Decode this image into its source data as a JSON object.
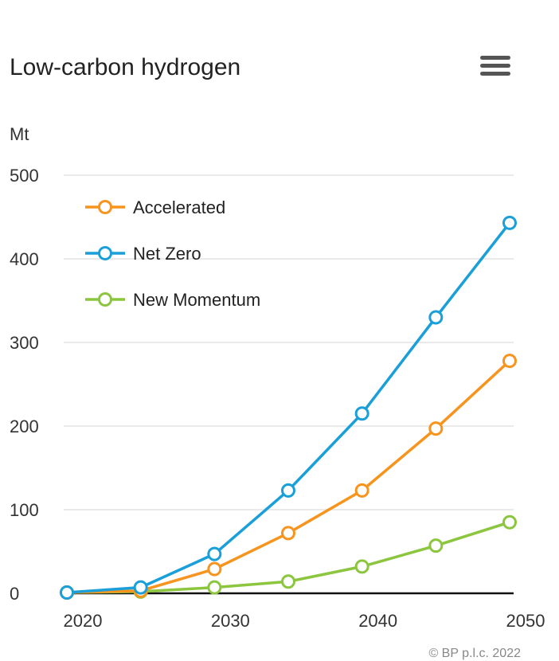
{
  "header": {
    "title": "Low-carbon hydrogen",
    "menu_icon": "hamburger-menu-icon"
  },
  "credit": "© BP p.l.c. 2022",
  "chart_data": {
    "type": "line",
    "title": "Low-carbon hydrogen",
    "ylabel": "Mt",
    "xlabel": "",
    "x": [
      2020,
      2025,
      2030,
      2035,
      2040,
      2045,
      2050
    ],
    "xlim": [
      2020,
      2050
    ],
    "ylim": [
      0,
      500
    ],
    "xticks": [
      "2020",
      "2030",
      "2040",
      "2050"
    ],
    "yticks": [
      "0",
      "100",
      "200",
      "300",
      "400",
      "500"
    ],
    "grid": true,
    "legend_position": "top-left",
    "series": [
      {
        "name": "Accelerated",
        "color": "#f7941d",
        "values": [
          1,
          3,
          29,
          72,
          123,
          197,
          278
        ]
      },
      {
        "name": "Net Zero",
        "color": "#1a9fd9",
        "values": [
          1,
          7,
          47,
          123,
          215,
          330,
          443
        ]
      },
      {
        "name": "New Momentum",
        "color": "#8cc63f",
        "values": [
          1,
          2,
          7,
          14,
          32,
          57,
          85
        ]
      }
    ]
  }
}
